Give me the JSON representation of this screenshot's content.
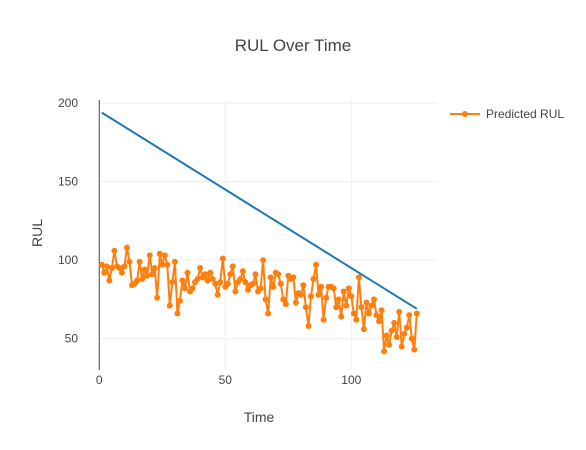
{
  "chart_data": {
    "type": "line",
    "title": "RUL Over Time",
    "xlabel": "Time",
    "ylabel": "RUL",
    "xlim": [
      -0.5,
      134
    ],
    "ylim": [
      30,
      202
    ],
    "x_ticks": [
      0,
      50,
      100
    ],
    "y_ticks": [
      50,
      100,
      150,
      200
    ],
    "grid": true,
    "legend_position": "top-right",
    "series": [
      {
        "name": "",
        "mode": "lines",
        "color": "#1f77b4",
        "x": [
          1,
          126
        ],
        "y": [
          194,
          69
        ]
      },
      {
        "name": "Predicted RUL",
        "mode": "lines+markers",
        "color": "#ff7f0e",
        "x": [
          1,
          2,
          3,
          4,
          5,
          6,
          7,
          8,
          9,
          10,
          11,
          12,
          13,
          14,
          15,
          16,
          17,
          18,
          19,
          20,
          21,
          22,
          23,
          24,
          25,
          26,
          27,
          28,
          29,
          30,
          31,
          32,
          33,
          34,
          35,
          36,
          37,
          38,
          39,
          40,
          41,
          42,
          43,
          44,
          45,
          46,
          47,
          48,
          49,
          50,
          51,
          52,
          53,
          54,
          55,
          56,
          57,
          58,
          59,
          60,
          61,
          62,
          63,
          64,
          65,
          66,
          67,
          68,
          69,
          70,
          71,
          72,
          73,
          74,
          75,
          76,
          77,
          78,
          79,
          80,
          81,
          82,
          83,
          84,
          85,
          86,
          87,
          88,
          89,
          90,
          91,
          92,
          93,
          94,
          95,
          96,
          97,
          98,
          99,
          100,
          101,
          102,
          103,
          104,
          105,
          106,
          107,
          108,
          109,
          110,
          111,
          112,
          113,
          114,
          115,
          116,
          117,
          118,
          119,
          120,
          121,
          122,
          123,
          124,
          125,
          126
        ],
        "y": [
          97,
          92,
          96,
          87,
          95,
          106,
          96,
          95,
          92,
          96,
          108,
          99,
          84,
          85,
          87,
          99,
          88,
          94,
          90,
          103,
          91,
          95,
          76,
          104,
          97,
          103,
          97,
          71,
          86,
          99,
          66,
          74,
          87,
          82,
          92,
          80,
          82,
          86,
          88,
          95,
          89,
          91,
          87,
          92,
          88,
          85,
          78,
          86,
          101,
          83,
          85,
          91,
          96,
          80,
          86,
          88,
          93,
          86,
          81,
          84,
          85,
          91,
          80,
          82,
          100,
          75,
          66,
          89,
          83,
          92,
          91,
          85,
          75,
          72,
          90,
          88,
          89,
          73,
          79,
          78,
          84,
          70,
          58,
          77,
          88,
          97,
          78,
          83,
          62,
          76,
          83,
          83,
          82,
          70,
          75,
          64,
          80,
          71,
          82,
          77,
          66,
          62,
          89,
          70,
          56,
          73,
          66,
          71,
          75,
          65,
          61,
          68,
          42,
          52,
          46,
          55,
          60,
          51,
          67,
          45,
          53,
          57,
          65,
          50,
          43,
          66
        ]
      }
    ]
  }
}
